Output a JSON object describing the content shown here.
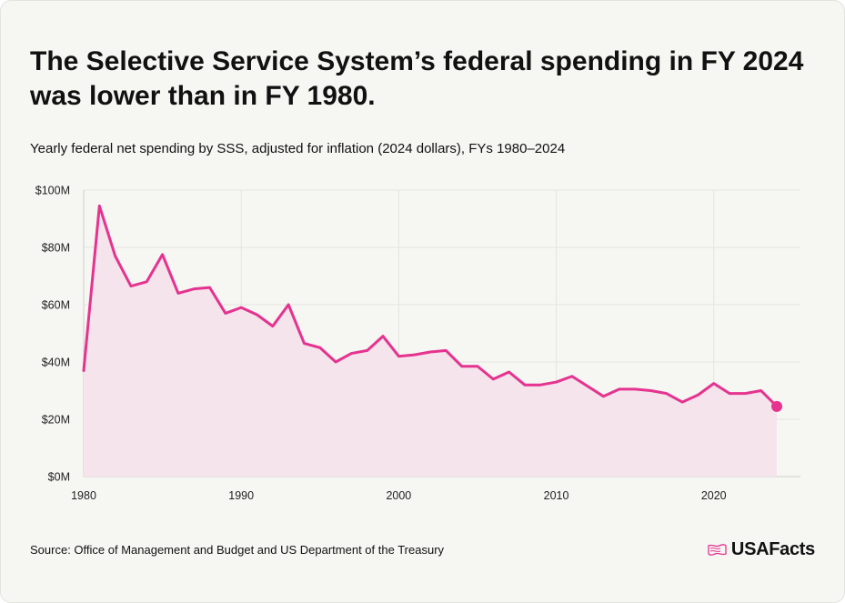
{
  "title": "The Selective Service System’s federal spending in FY 2024 was lower than in FY 1980.",
  "subtitle": "Yearly federal net spending by SSS, adjusted for inflation (2024 dollars), FYs 1980–2024",
  "source": "Source: Office of Management and Budget and US Department of the Treasury",
  "logo": {
    "text": "USAFacts",
    "icon": "usa-flag-icon"
  },
  "colors": {
    "line": "#e5338f",
    "area": "#f5e4ec",
    "grid": "#e4e4e0",
    "axis": "#cfcfcb"
  },
  "chart_data": {
    "type": "area",
    "title": "The Selective Service System’s federal spending in FY 2024 was lower than in FY 1980.",
    "subtitle": "Yearly federal net spending by SSS, adjusted for inflation (2024 dollars), FYs 1980–2024",
    "xlabel": "",
    "ylabel": "",
    "xlim": [
      1980,
      2025.5
    ],
    "ylim": [
      0,
      100
    ],
    "x_ticks": [
      1980,
      1990,
      2000,
      2010,
      2020
    ],
    "y_ticks": [
      0,
      20,
      40,
      60,
      80,
      100
    ],
    "y_tick_labels": [
      "$0M",
      "$20M",
      "$40M",
      "$60M",
      "$80M",
      "$100M"
    ],
    "grid": true,
    "legend": "none",
    "series": [
      {
        "x": [
          1980,
          1981,
          1982,
          1983,
          1984,
          1985,
          1986,
          1987,
          1988,
          1989,
          1990,
          1991,
          1992,
          1993,
          1994,
          1995,
          1996,
          1997,
          1998,
          1999,
          2000,
          2001,
          2002,
          2003,
          2004,
          2005,
          2006,
          2007,
          2008,
          2009,
          2010,
          2011,
          2012,
          2013,
          2014,
          2015,
          2016,
          2017,
          2018,
          2019,
          2020,
          2021,
          2022,
          2023,
          2024
        ],
        "values": [
          37,
          94.5,
          77,
          66.5,
          68,
          77.5,
          64,
          65.5,
          66,
          57,
          59,
          56.5,
          52.5,
          60,
          46.5,
          45,
          40,
          43,
          44,
          49,
          42,
          42.5,
          43.5,
          44,
          38.5,
          38.5,
          34,
          36.5,
          32,
          32,
          33,
          35,
          31.5,
          28,
          30.5,
          30.5,
          30,
          29,
          26,
          28.5,
          32.5,
          29,
          29,
          30,
          24.5
        ]
      }
    ],
    "end_marker": true
  }
}
